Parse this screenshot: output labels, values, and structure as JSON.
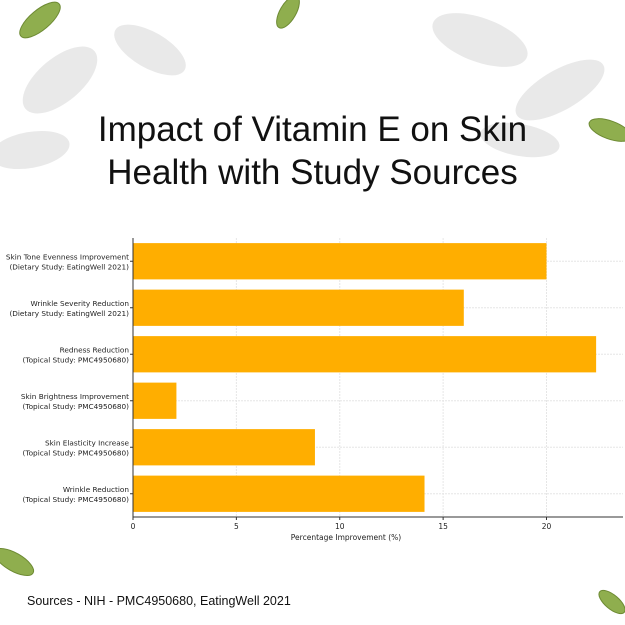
{
  "title_lines": [
    "Impact of Vitamin E on Skin",
    "Health with Study Sources"
  ],
  "sources": "Sources - NIH - PMC4950680, EatingWell 2021",
  "colors": {
    "bar": "#FFAE00",
    "grid": "#e6e6e6",
    "axis": "#333333",
    "text": "#111111"
  },
  "chart_data": {
    "type": "bar",
    "orientation": "horizontal",
    "title": "Impact of Vitamin E on Skin Health with Study Sources",
    "xlabel": "Percentage Improvement (%)",
    "ylabel": "",
    "xlim": [
      0,
      23.7
    ],
    "xticks": [
      0,
      5,
      10,
      15,
      20
    ],
    "grid": true,
    "categories": [
      [
        "Skin Tone Evenness Improvement",
        "(Dietary Study: EatingWell 2021)"
      ],
      [
        "Wrinkle Severity Reduction",
        "(Dietary Study: EatingWell 2021)"
      ],
      [
        "Redness Reduction",
        "(Topical Study: PMC4950680)"
      ],
      [
        "Skin Brightness Improvement",
        "(Topical Study: PMC4950680)"
      ],
      [
        "Skin Elasticity Increase",
        "(Topical Study: PMC4950680)"
      ],
      [
        "Wrinkle Reduction",
        "(Topical Study: PMC4950680)"
      ]
    ],
    "values": [
      20,
      16,
      22.4,
      2.1,
      8.8,
      14.1
    ]
  }
}
